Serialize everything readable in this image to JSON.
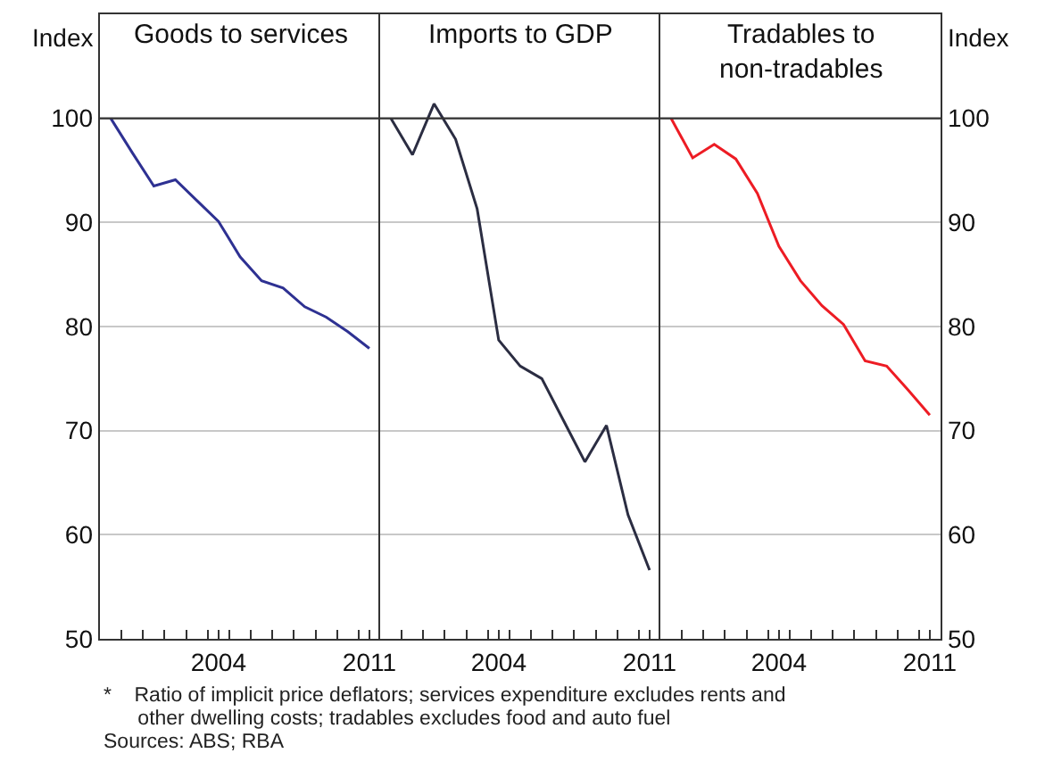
{
  "chart_data": [
    {
      "type": "line",
      "title": "Goods to services",
      "ylabel": "Index",
      "x": [
        1999,
        2000,
        2001,
        2002,
        2003,
        2004,
        2005,
        2006,
        2007,
        2008,
        2009,
        2010,
        2011
      ],
      "series": [
        {
          "color": "#2e3192",
          "values": [
            100,
            96.7,
            93.5,
            94.1,
            92.1,
            90.1,
            86.7,
            84.4,
            83.7,
            81.9,
            80.9,
            79.5,
            77.9
          ]
        }
      ],
      "xlim": [
        1998.5,
        2011.5
      ],
      "xticks": [
        {
          "value": 1999.5,
          "label": null
        },
        {
          "value": 2000.5,
          "label": null
        },
        {
          "value": 2001.5,
          "label": null
        },
        {
          "value": 2002.5,
          "label": null
        },
        {
          "value": 2003.5,
          "label": null
        },
        {
          "value": 2004.5,
          "label": null
        },
        {
          "value": 2005.5,
          "label": null
        },
        {
          "value": 2006.5,
          "label": null
        },
        {
          "value": 2007.5,
          "label": null
        },
        {
          "value": 2008.5,
          "label": null
        },
        {
          "value": 2009.5,
          "label": null
        },
        {
          "value": 2010.5,
          "label": null
        },
        {
          "value": 2004,
          "label": "2004"
        },
        {
          "value": 2011,
          "label": "2011"
        }
      ],
      "ylim": [
        50,
        110
      ],
      "yticks": [
        50,
        60,
        70,
        80,
        90,
        100
      ],
      "grid": "y",
      "ref_lines": [
        {
          "axis": "y",
          "value": 100,
          "color": "#333333"
        }
      ],
      "annotations": [
        "*    Ratio of implicit price deflators; services expenditure excludes rents and\n      other dwelling costs; tradables excludes food and auto fuel",
        "Sources: ABS; RBA"
      ]
    },
    {
      "type": "line",
      "title": "Imports to GDP",
      "x": [
        1999,
        2000,
        2001,
        2002,
        2003,
        2004,
        2005,
        2006,
        2007,
        2008,
        2009,
        2010,
        2011
      ],
      "series": [
        {
          "color": "#2b2d42",
          "values": [
            100,
            96.5,
            101.4,
            98.0,
            91.3,
            78.7,
            76.2,
            75.0,
            71.0,
            67.0,
            70.5,
            61.9,
            56.6
          ]
        }
      ],
      "xlim": [
        1998.5,
        2011.5
      ],
      "xticks": [
        {
          "value": 1999.5,
          "label": null
        },
        {
          "value": 2000.5,
          "label": null
        },
        {
          "value": 2001.5,
          "label": null
        },
        {
          "value": 2002.5,
          "label": null
        },
        {
          "value": 2003.5,
          "label": null
        },
        {
          "value": 2004.5,
          "label": null
        },
        {
          "value": 2005.5,
          "label": null
        },
        {
          "value": 2006.5,
          "label": null
        },
        {
          "value": 2007.5,
          "label": null
        },
        {
          "value": 2008.5,
          "label": null
        },
        {
          "value": 2009.5,
          "label": null
        },
        {
          "value": 2010.5,
          "label": null
        },
        {
          "value": 2004,
          "label": "2004"
        },
        {
          "value": 2011,
          "label": "2011"
        }
      ],
      "ylim": [
        50,
        110
      ],
      "yticks": [
        50,
        60,
        70,
        80,
        90,
        100
      ],
      "grid": "y",
      "tick_labels": "x",
      "ref_lines": [
        {
          "axis": "y",
          "value": 100,
          "color": "#333333"
        }
      ]
    },
    {
      "type": "line",
      "title": "Tradables to\nnon-tradables",
      "ylabel": "Index",
      "x": [
        1999,
        2000,
        2001,
        2002,
        2003,
        2004,
        2005,
        2006,
        2007,
        2008,
        2009,
        2010,
        2011
      ],
      "series": [
        {
          "color": "#ed1c24",
          "values": [
            100,
            96.2,
            97.5,
            96.1,
            92.8,
            87.7,
            84.4,
            82.0,
            80.2,
            76.7,
            76.2,
            73.9,
            71.5
          ]
        }
      ],
      "xlim": [
        1998.5,
        2011.5
      ],
      "xticks": [
        {
          "value": 1999.5,
          "label": null
        },
        {
          "value": 2000.5,
          "label": null
        },
        {
          "value": 2001.5,
          "label": null
        },
        {
          "value": 2002.5,
          "label": null
        },
        {
          "value": 2003.5,
          "label": null
        },
        {
          "value": 2004.5,
          "label": null
        },
        {
          "value": 2005.5,
          "label": null
        },
        {
          "value": 2006.5,
          "label": null
        },
        {
          "value": 2007.5,
          "label": null
        },
        {
          "value": 2008.5,
          "label": null
        },
        {
          "value": 2009.5,
          "label": null
        },
        {
          "value": 2010.5,
          "label": null
        },
        {
          "value": 2004,
          "label": "2004"
        },
        {
          "value": 2011,
          "label": "2011"
        }
      ],
      "ylim": [
        50,
        110
      ],
      "yticks": [
        50,
        60,
        70,
        80,
        90,
        100
      ],
      "grid": "y",
      "ref_lines": [
        {
          "axis": "y",
          "value": 100,
          "color": "#333333"
        }
      ]
    }
  ]
}
